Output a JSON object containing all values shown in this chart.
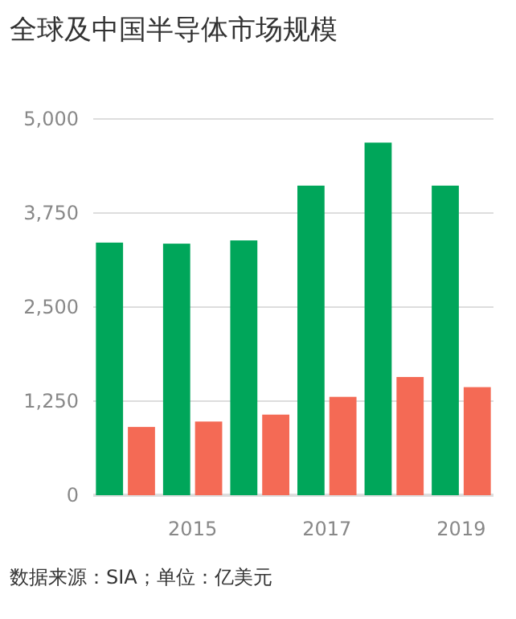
{
  "chart_data": {
    "type": "bar",
    "title": "全球及中国半导体市场规模",
    "categories": [
      null,
      "2015",
      null,
      "2017",
      null,
      "2019"
    ],
    "series": [
      {
        "color": "#00a65a",
        "values": [
          3357,
          3343,
          3386,
          4114,
          4686,
          4114
        ]
      },
      {
        "color": "#f46a55",
        "values": [
          907,
          979,
          1071,
          1307,
          1571,
          1436
        ]
      }
    ],
    "ylim": [
      0,
      5000
    ],
    "yticks": [
      0,
      {
        "value": 1250,
        "label": "1,250"
      },
      {
        "value": 2500,
        "label": "2,500"
      },
      {
        "value": 3750,
        "label": "3,750"
      },
      {
        "value": 5000,
        "label": "5,000"
      }
    ],
    "grid": "y",
    "annotations": [
      "数据来源：SIA；单位：亿美元"
    ]
  }
}
